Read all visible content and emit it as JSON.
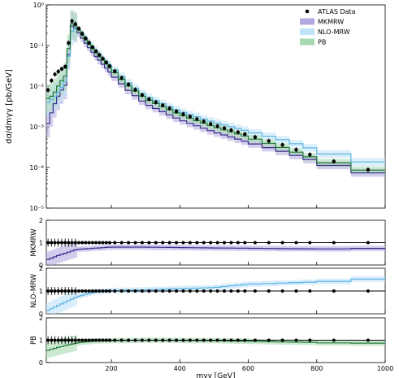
{
  "chart_data": [
    {
      "panel": "main",
      "type": "line",
      "ylabel": "dσ/dmγγ  [pb/GeV]",
      "yscale": "log",
      "xlim": [
        10,
        1000
      ],
      "ylim": [
        1e-05,
        1
      ],
      "y_tick_labels": [
        "10⁻⁵",
        "10⁻⁴",
        "10⁻³",
        "10⁻²",
        "10⁻¹",
        "10⁰"
      ],
      "legend_position": "top-right",
      "legend": [
        "ATLAS Data",
        "MKMRW",
        "NLO-MRW",
        "PB"
      ],
      "x": [
        15,
        30,
        50,
        70,
        80,
        90,
        100,
        120,
        150,
        200,
        250,
        300,
        400,
        500,
        600,
        700,
        800,
        900,
        1000
      ],
      "series": [
        {
          "name": "ATLAS Data",
          "values": [
            0.008,
            0.018,
            0.025,
            0.032,
            0.42,
            0.38,
            0.3,
            0.17,
            0.08,
            0.028,
            0.011,
            0.0052,
            0.0022,
            0.0011,
            0.00062,
            0.00036,
            0.00018,
            0.00011,
            7e-05
          ]
        },
        {
          "name": "MKMRW",
          "values": [
            0.0012,
            0.003,
            0.007,
            0.012,
            0.3,
            0.3,
            0.24,
            0.13,
            0.06,
            0.02,
            0.0079,
            0.0037,
            0.0015,
            0.00075,
            0.00042,
            0.00025,
            0.00014,
            9e-05,
            6e-05
          ]
        },
        {
          "name": "NLO-MRW",
          "values": [
            0.004,
            0.005,
            0.008,
            0.015,
            0.2,
            0.25,
            0.27,
            0.17,
            0.084,
            0.03,
            0.012,
            0.0057,
            0.0024,
            0.0013,
            0.00078,
            0.00048,
            0.00027,
            0.00017,
            0.00011
          ]
        },
        {
          "name": "PB",
          "values": [
            0.005,
            0.006,
            0.012,
            0.02,
            0.35,
            0.33,
            0.28,
            0.155,
            0.075,
            0.026,
            0.0101,
            0.0049,
            0.002,
            0.001,
            0.00056,
            0.00031,
            0.00016,
            0.000105,
            7e-05
          ]
        }
      ]
    },
    {
      "panel": "ratio",
      "type": "line",
      "ylabel": "MKMRW",
      "ylim": [
        0,
        2
      ],
      "y_tick_labels": [
        "0",
        "1",
        "2"
      ],
      "x": [
        15,
        50,
        100,
        200,
        300,
        400,
        500,
        600,
        700,
        800,
        900,
        1000
      ],
      "values": [
        0.25,
        0.45,
        0.7,
        0.8,
        0.8,
        0.78,
        0.76,
        0.75,
        0.73,
        0.72,
        0.72,
        0.76
      ]
    },
    {
      "panel": "ratio",
      "type": "line",
      "ylabel": "NLO-MRW",
      "ylim": [
        0,
        2
      ],
      "y_tick_labels": [
        "0",
        "1",
        "2"
      ],
      "x": [
        15,
        50,
        100,
        150,
        200,
        300,
        400,
        500,
        600,
        700,
        800,
        900,
        1000
      ],
      "values": [
        0.15,
        0.4,
        0.75,
        0.95,
        1.02,
        1.05,
        1.1,
        1.15,
        1.3,
        1.35,
        1.4,
        1.45,
        1.6
      ]
    },
    {
      "panel": "ratio",
      "type": "line",
      "ylabel": "PB",
      "ylim": [
        0,
        2
      ],
      "y_tick_labels": [
        "0",
        "1",
        "2"
      ],
      "xlabel": "mγγ [GeV]",
      "x_tick_labels": [
        "200",
        "400",
        "600",
        "800",
        "1000"
      ],
      "x_ticks": [
        200,
        400,
        600,
        800,
        1000
      ],
      "x": [
        15,
        50,
        100,
        150,
        200,
        300,
        400,
        500,
        600,
        700,
        800,
        900,
        1000
      ],
      "values": [
        0.55,
        0.7,
        0.88,
        0.96,
        0.98,
        1.0,
        0.99,
        0.98,
        0.95,
        0.92,
        0.9,
        0.86,
        0.88
      ]
    }
  ],
  "colors": {
    "data": "#000000",
    "MKMRW": "#3b2d8f",
    "MKMRW_band": "#b3a8e0",
    "NLO-MRW": "#5ab4e5",
    "NLO-MRW_band": "#bfe3f7",
    "PB": "#1f7a3a",
    "PB_band": "#a8d8b0"
  }
}
